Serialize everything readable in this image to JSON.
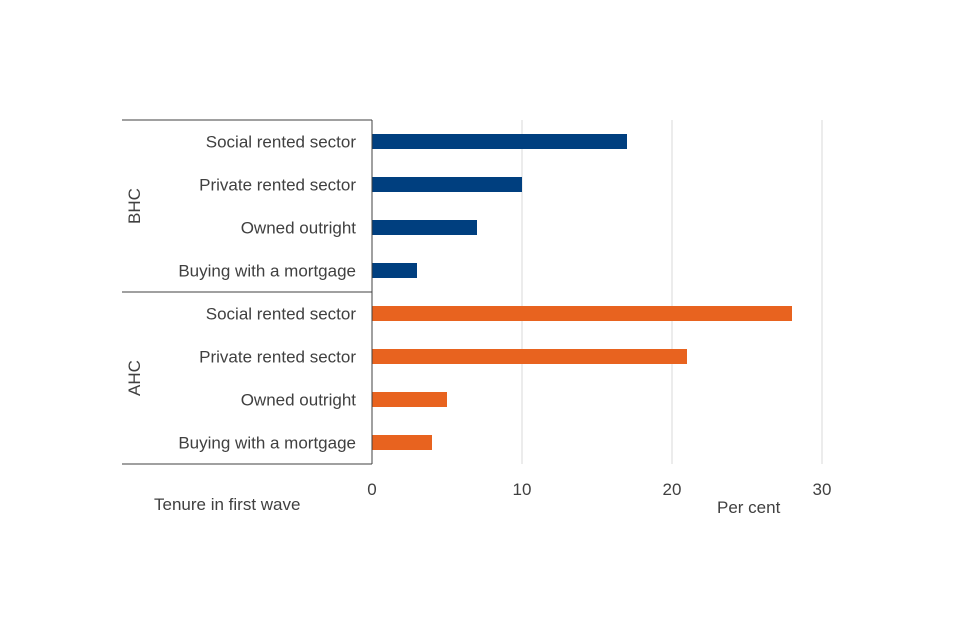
{
  "chart_data": {
    "type": "bar",
    "orientation": "horizontal",
    "xlabel": "Per cent",
    "ylabel": "Tenure in first wave",
    "xlim": [
      0,
      30
    ],
    "xticks": [
      0,
      10,
      20,
      30
    ],
    "grid": true,
    "groups": [
      {
        "name": "BHC",
        "color": "#003f7f",
        "categories": [
          "Social rented sector",
          "Private rented sector",
          "Owned outright",
          "Buying with a mortgage"
        ],
        "values": [
          17,
          10,
          7,
          3
        ]
      },
      {
        "name": "AHC",
        "color": "#e8631f",
        "categories": [
          "Social rented sector",
          "Private rented sector",
          "Owned outright",
          "Buying with a mortgage"
        ],
        "values": [
          28,
          21,
          5,
          4
        ]
      }
    ]
  }
}
